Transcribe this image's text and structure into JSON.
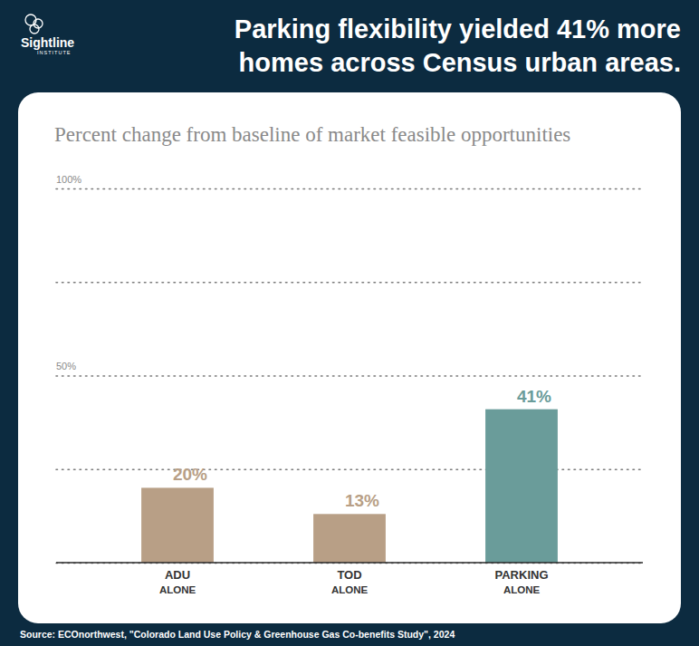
{
  "chart_data": {
    "type": "bar",
    "title": "Parking flexibility yielded 41% more homes across Census urban areas.",
    "subtitle": "Percent change from baseline of market feasible opportunities",
    "categories": [
      "ADU ALONE",
      "TOD ALONE",
      "PARKING ALONE"
    ],
    "values": [
      20,
      13,
      41
    ],
    "value_labels": [
      "20%",
      "13%",
      "41%"
    ],
    "colors": [
      "#b89f86",
      "#b89f86",
      "#6a9c9a"
    ],
    "ylim": [
      0,
      100
    ],
    "yticks": [
      {
        "value": 0,
        "label": null
      },
      {
        "value": 25,
        "label": null
      },
      {
        "value": 50,
        "label": "50%"
      },
      {
        "value": 75,
        "label": null
      },
      {
        "value": 100,
        "label": "100%"
      }
    ],
    "grid": true,
    "data_labels": true
  },
  "header": {
    "logo": "Sightline",
    "logo_sub": "INSTITUTE"
  },
  "source": "Source: ECOnorthwest, \"Colorado Land Use Policy & Greenhouse Gas Co-benefits Study\", 2024"
}
